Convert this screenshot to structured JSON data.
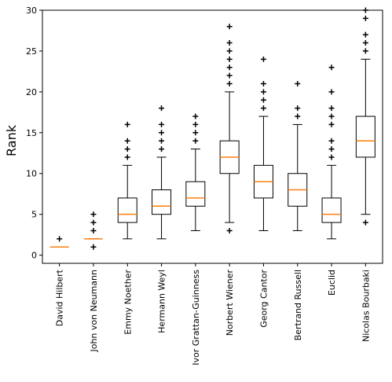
{
  "chart_data": {
    "type": "box",
    "title": "",
    "xlabel": "",
    "ylabel": "Rank",
    "ylim": [
      -1,
      30
    ],
    "yticks": [
      0,
      5,
      10,
      15,
      20,
      25,
      30
    ],
    "grid": false,
    "colors": {
      "box": "#000000",
      "median": "#ff7f0e",
      "flier": "#000000"
    },
    "categories": [
      "David Hilbert",
      "John von Neumann",
      "Emmy Noether",
      "Hermann Weyl",
      "Ivor Grattan-Guinness",
      "Norbert Wiener",
      "Georg Cantor",
      "Bertrand Russell",
      "Euclid",
      "Nicolas Bourbaki"
    ],
    "boxes": [
      {
        "whisker_low": 1,
        "q1": 1,
        "median": 1,
        "q3": 1,
        "whisker_high": 1,
        "fliers": [
          2
        ]
      },
      {
        "whisker_low": 2,
        "q1": 2,
        "median": 2,
        "q3": 2,
        "whisker_high": 2,
        "fliers": [
          1,
          3,
          4,
          5
        ]
      },
      {
        "whisker_low": 2,
        "q1": 4,
        "median": 5,
        "q3": 7,
        "whisker_high": 11,
        "fliers": [
          12,
          13,
          14,
          16
        ]
      },
      {
        "whisker_low": 2,
        "q1": 5,
        "median": 6,
        "q3": 8,
        "whisker_high": 12,
        "fliers": [
          13,
          14,
          15,
          16,
          18
        ]
      },
      {
        "whisker_low": 3,
        "q1": 6,
        "median": 7,
        "q3": 9,
        "whisker_high": 13,
        "fliers": [
          14,
          15,
          16,
          17
        ]
      },
      {
        "whisker_low": 4,
        "q1": 10,
        "median": 12,
        "q3": 14,
        "whisker_high": 20,
        "fliers": [
          3,
          21,
          22,
          23,
          24,
          25,
          26,
          28
        ]
      },
      {
        "whisker_low": 3,
        "q1": 7,
        "median": 9,
        "q3": 11,
        "whisker_high": 17,
        "fliers": [
          18,
          19,
          20,
          21,
          24
        ]
      },
      {
        "whisker_low": 3,
        "q1": 6,
        "median": 8,
        "q3": 10,
        "whisker_high": 16,
        "fliers": [
          17,
          18,
          21
        ]
      },
      {
        "whisker_low": 2,
        "q1": 4,
        "median": 5,
        "q3": 7,
        "whisker_high": 11,
        "fliers": [
          12,
          13,
          14,
          16,
          17,
          18,
          20,
          23
        ]
      },
      {
        "whisker_low": 5,
        "q1": 12,
        "median": 14,
        "q3": 17,
        "whisker_high": 24,
        "fliers": [
          4,
          25,
          26,
          27,
          29,
          30
        ]
      }
    ]
  }
}
